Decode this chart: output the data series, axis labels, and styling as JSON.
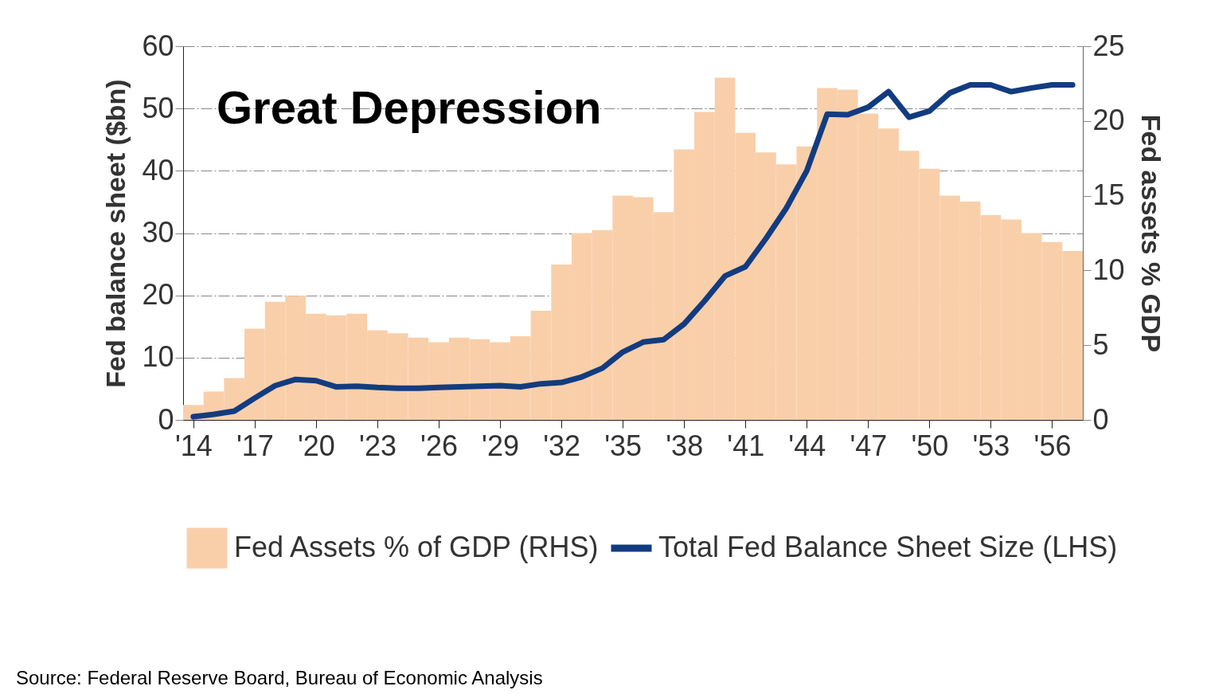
{
  "chart_data": {
    "type": "bar",
    "title": "Great Depression",
    "ylabel": "Fed balance sheet ($bn)",
    "y2label": "Fed assets % GDP",
    "x": [
      1914,
      1915,
      1916,
      1917,
      1918,
      1919,
      1920,
      1921,
      1922,
      1923,
      1924,
      1925,
      1926,
      1927,
      1928,
      1929,
      1930,
      1931,
      1932,
      1933,
      1934,
      1935,
      1936,
      1937,
      1938,
      1939,
      1940,
      1941,
      1942,
      1943,
      1944,
      1945,
      1946,
      1947,
      1948,
      1949,
      1950,
      1951,
      1952,
      1953,
      1954,
      1955,
      1956,
      1957
    ],
    "series": [
      {
        "name": "Fed Assets % of GDP (RHS)",
        "axis": "y2",
        "color": "#f9cfaa",
        "values": [
          1.0,
          1.9,
          2.8,
          6.1,
          7.9,
          8.3,
          7.1,
          7.0,
          7.1,
          6.0,
          5.8,
          5.5,
          5.2,
          5.5,
          5.4,
          5.2,
          5.6,
          7.3,
          10.4,
          12.5,
          12.7,
          15.0,
          14.9,
          13.9,
          18.1,
          20.6,
          22.9,
          19.2,
          17.9,
          17.1,
          18.3,
          22.2,
          22.1,
          20.5,
          19.5,
          18.0,
          16.8,
          15.0,
          14.6,
          13.7,
          13.4,
          12.5,
          11.9,
          11.3
        ]
      },
      {
        "name": "Total Fed Balance Sheet Size (LHS)",
        "type": "line",
        "axis": "y",
        "color": "#123c80",
        "values": [
          0.5,
          0.9,
          1.4,
          3.5,
          5.5,
          6.5,
          6.3,
          5.3,
          5.4,
          5.2,
          5.1,
          5.1,
          5.2,
          5.3,
          5.4,
          5.5,
          5.3,
          5.8,
          6.0,
          6.9,
          8.3,
          10.9,
          12.5,
          12.9,
          15.4,
          19.1,
          23.1,
          24.6,
          29.1,
          34.0,
          40.0,
          49.1,
          49.0,
          50.2,
          52.7,
          48.6,
          49.6,
          52.5,
          53.8,
          53.8,
          52.7,
          53.3,
          53.8,
          53.8
        ]
      }
    ],
    "xlim": [
      1913.5,
      1957.5
    ],
    "xticks": [
      {
        "value": 1914,
        "label": "'14"
      },
      {
        "value": 1917,
        "label": "'17"
      },
      {
        "value": 1920,
        "label": "'20"
      },
      {
        "value": 1923,
        "label": "'23"
      },
      {
        "value": 1926,
        "label": "'26"
      },
      {
        "value": 1929,
        "label": "'29"
      },
      {
        "value": 1932,
        "label": "'32"
      },
      {
        "value": 1935,
        "label": "'35"
      },
      {
        "value": 1938,
        "label": "'38"
      },
      {
        "value": 1941,
        "label": "'41"
      },
      {
        "value": 1944,
        "label": "'44"
      },
      {
        "value": 1947,
        "label": "'47"
      },
      {
        "value": 1950,
        "label": "'50"
      },
      {
        "value": 1953,
        "label": "'53"
      },
      {
        "value": 1956,
        "label": "'56"
      }
    ],
    "ylim": [
      0,
      60
    ],
    "yticks": [
      0,
      10,
      20,
      30,
      40,
      50,
      60
    ],
    "y2lim": [
      0,
      25
    ],
    "y2ticks": [
      0,
      5,
      10,
      15,
      20,
      25
    ],
    "grid": "y",
    "legend": "bottom",
    "line_style": "solid",
    "annotations": [
      "Source: Federal Reserve Board, Bureau of Economic Analysis"
    ]
  }
}
